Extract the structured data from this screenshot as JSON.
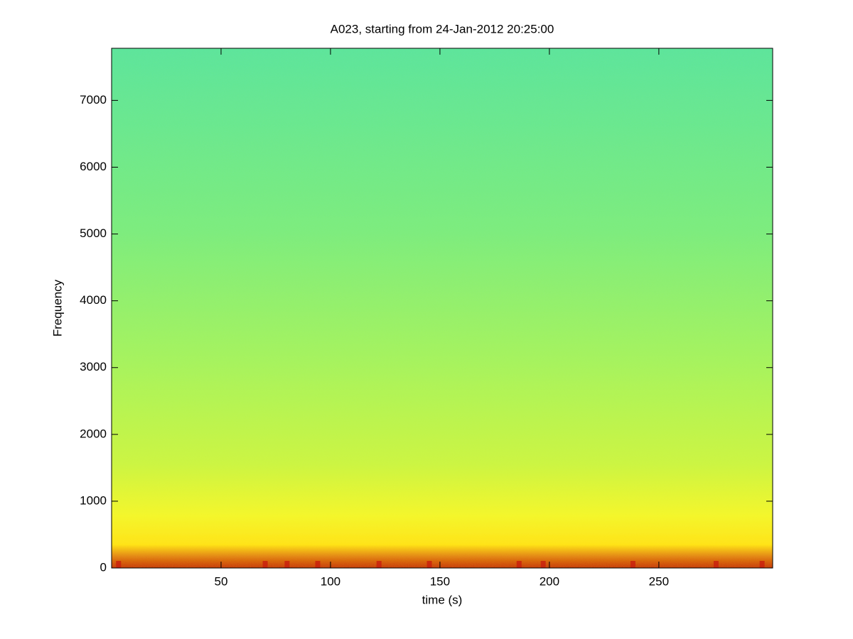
{
  "chart_data": {
    "type": "spectrogram",
    "title": "A023, starting from 24-Jan-2012 20:25:00",
    "x_label": "time (s)",
    "y_label": "Frequency",
    "xlim": [
      0,
      302
    ],
    "xticks": [
      50,
      100,
      150,
      200,
      250
    ],
    "ylim": [
      0,
      7780
    ],
    "yticks": [
      0,
      1000,
      2000,
      3000,
      4000,
      5000,
      6000,
      7000
    ],
    "colors": [
      "#5ee3a2",
      "#7deb84",
      "#a6f263",
      "#ccf446",
      "#f4f52e",
      "#ffe21a",
      "#c81e0e"
    ]
  }
}
